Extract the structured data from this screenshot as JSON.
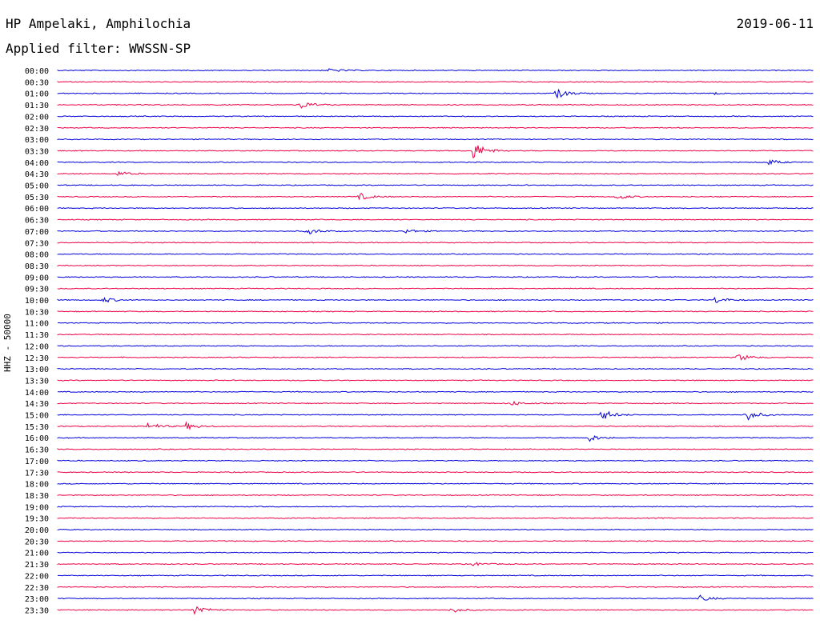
{
  "header": {
    "station": "HP Ampelaki, Amphilochia",
    "date": "2019-06-11",
    "filter": "Applied filter: WWSSN-SP"
  },
  "chart_data": {
    "type": "line",
    "title": "HP Ampelaki, Amphilochia",
    "ylabel": "HHZ - 50000",
    "colors": [
      "#0000dd",
      "#ee0044"
    ],
    "rows": [
      "00:00",
      "00:30",
      "01:00",
      "01:30",
      "02:00",
      "02:30",
      "03:00",
      "03:30",
      "04:00",
      "04:30",
      "05:00",
      "05:30",
      "06:00",
      "06:30",
      "07:00",
      "07:30",
      "08:00",
      "08:30",
      "09:00",
      "09:30",
      "10:00",
      "10:30",
      "11:00",
      "11:30",
      "12:00",
      "12:30",
      "13:00",
      "13:30",
      "14:00",
      "14:30",
      "15:00",
      "15:30",
      "16:00",
      "16:30",
      "17:00",
      "17:30",
      "18:00",
      "18:30",
      "19:00",
      "19:30",
      "20:00",
      "20:30",
      "21:00",
      "21:30",
      "22:00",
      "22:30",
      "23:00",
      "23:30"
    ],
    "events": [
      {
        "row": "00:00",
        "t": 0.36,
        "amp": 0.35
      },
      {
        "row": "01:00",
        "t": 0.66,
        "amp": 0.9
      },
      {
        "row": "01:00",
        "t": 0.87,
        "amp": 0.3
      },
      {
        "row": "01:30",
        "t": 0.32,
        "amp": 0.8
      },
      {
        "row": "03:30",
        "t": 0.55,
        "amp": 1.6
      },
      {
        "row": "04:00",
        "t": 0.94,
        "amp": 0.5
      },
      {
        "row": "04:30",
        "t": 0.08,
        "amp": 0.4
      },
      {
        "row": "05:30",
        "t": 0.4,
        "amp": 0.6
      },
      {
        "row": "05:30",
        "t": 0.74,
        "amp": 0.5
      },
      {
        "row": "07:00",
        "t": 0.33,
        "amp": 0.6
      },
      {
        "row": "07:00",
        "t": 0.46,
        "amp": 0.4
      },
      {
        "row": "10:00",
        "t": 0.06,
        "amp": 0.5
      },
      {
        "row": "10:00",
        "t": 0.87,
        "amp": 0.6
      },
      {
        "row": "12:30",
        "t": 0.9,
        "amp": 0.7
      },
      {
        "row": "14:30",
        "t": 0.6,
        "amp": 0.4
      },
      {
        "row": "15:00",
        "t": 0.72,
        "amp": 1.0
      },
      {
        "row": "15:00",
        "t": 0.91,
        "amp": 1.1
      },
      {
        "row": "15:30",
        "t": 0.12,
        "amp": 0.7
      },
      {
        "row": "15:30",
        "t": 0.17,
        "amp": 0.6
      },
      {
        "row": "16:00",
        "t": 0.7,
        "amp": 0.8
      },
      {
        "row": "21:30",
        "t": 0.55,
        "amp": 0.3
      },
      {
        "row": "23:00",
        "t": 0.85,
        "amp": 0.5
      },
      {
        "row": "23:30",
        "t": 0.18,
        "amp": 1.0
      },
      {
        "row": "23:30",
        "t": 0.52,
        "amp": 0.5
      }
    ]
  }
}
